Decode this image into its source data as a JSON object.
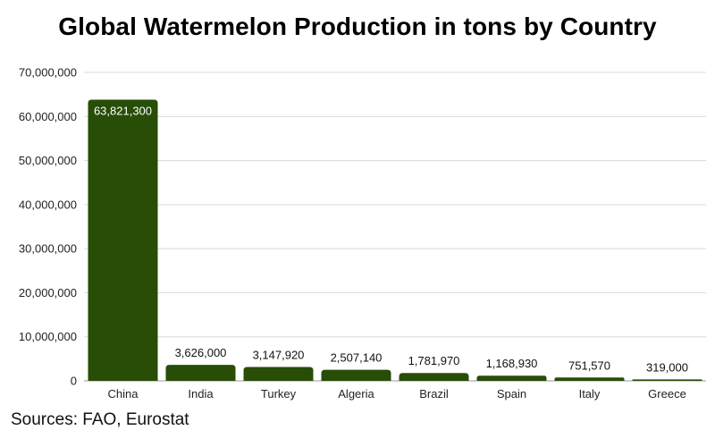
{
  "chart_data": {
    "type": "bar",
    "title": "Global Watermelon Production in tons by Country",
    "xlabel": "",
    "ylabel": "",
    "categories": [
      "China",
      "India",
      "Turkey",
      "Algeria",
      "Brazil",
      "Spain",
      "Italy",
      "Greece"
    ],
    "values": [
      63821300,
      3626000,
      3147920,
      2507140,
      1781970,
      1168930,
      751570,
      319000
    ],
    "value_labels": [
      "63,821,300",
      "3,626,000",
      "3,147,920",
      "2,507,140",
      "1,781,970",
      "1,168,930",
      "751,570",
      "319,000"
    ],
    "ylim": [
      0,
      70000000
    ],
    "y_ticks": [
      0,
      10000000,
      20000000,
      30000000,
      40000000,
      50000000,
      60000000,
      70000000
    ],
    "y_tick_labels": [
      "0",
      "10,000,000",
      "20,000,000",
      "30,000,000",
      "40,000,000",
      "50,000,000",
      "60,000,000",
      "70,000,000"
    ],
    "grid": true,
    "bar_color": "#274d07",
    "grid_color": "#d9d9d9"
  },
  "footer": {
    "source": "Sources: FAO, Eurostat"
  }
}
